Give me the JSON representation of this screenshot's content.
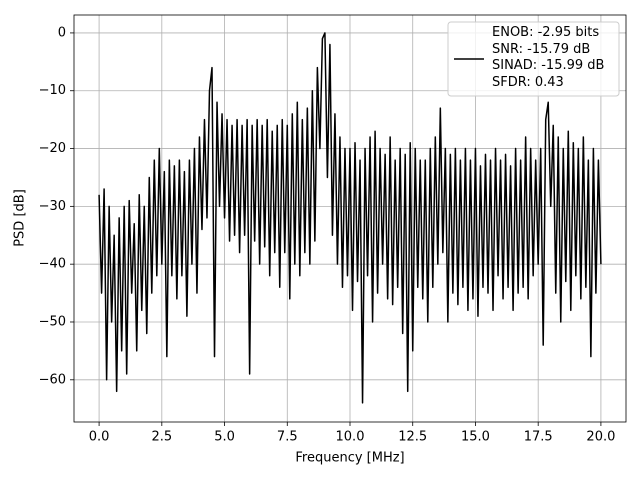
{
  "chart_data": {
    "type": "line",
    "xlabel": "Frequency [MHz]",
    "ylabel": "PSD [dB]",
    "xlim": [
      -1,
      21
    ],
    "ylim": [
      -67.3,
      3.1
    ],
    "xticks": [
      {
        "value": 0,
        "label": "0.0"
      },
      {
        "value": 2.5,
        "label": "2.5"
      },
      {
        "value": 5,
        "label": "5.0"
      },
      {
        "value": 7.5,
        "label": "7.5"
      },
      {
        "value": 10,
        "label": "10.0"
      },
      {
        "value": 12.5,
        "label": "12.5"
      },
      {
        "value": 15,
        "label": "15.0"
      },
      {
        "value": 17.5,
        "label": "17.5"
      },
      {
        "value": 20,
        "label": "20.0"
      }
    ],
    "yticks": [
      {
        "value": -60,
        "label": "−60"
      },
      {
        "value": -50,
        "label": "−50"
      },
      {
        "value": -40,
        "label": "−40"
      },
      {
        "value": -30,
        "label": "−30"
      },
      {
        "value": -20,
        "label": "−20"
      },
      {
        "value": -10,
        "label": "−10"
      },
      0
    ],
    "grid": true,
    "legend": "upper right",
    "x": [
      0,
      0.1,
      0.2,
      0.3,
      0.4,
      0.5,
      0.6,
      0.7,
      0.8,
      0.9,
      1,
      1.1,
      1.2,
      1.3,
      1.4,
      1.5,
      1.6,
      1.7,
      1.8,
      1.9,
      2,
      2.1,
      2.2,
      2.3,
      2.4,
      2.5,
      2.6,
      2.7,
      2.8,
      2.9,
      3,
      3.1,
      3.2,
      3.3,
      3.4,
      3.5,
      3.6,
      3.7,
      3.8,
      3.9,
      4,
      4.1,
      4.2,
      4.3,
      4.4,
      4.5,
      4.6,
      4.7,
      4.8,
      4.9,
      5,
      5.1,
      5.2,
      5.3,
      5.4,
      5.5,
      5.6,
      5.7,
      5.8,
      5.9,
      6,
      6.1,
      6.2,
      6.3,
      6.4,
      6.5,
      6.6,
      6.7,
      6.8,
      6.9,
      7,
      7.1,
      7.2,
      7.3,
      7.4,
      7.5,
      7.6,
      7.7,
      7.8,
      7.9,
      8,
      8.1,
      8.2,
      8.3,
      8.4,
      8.5,
      8.6,
      8.7,
      8.8,
      8.9,
      9,
      9.1,
      9.2,
      9.3,
      9.4,
      9.5,
      9.6,
      9.7,
      9.8,
      9.9,
      10,
      10.1,
      10.2,
      10.3,
      10.4,
      10.5,
      10.6,
      10.7,
      10.8,
      10.9,
      11,
      11.1,
      11.2,
      11.3,
      11.4,
      11.5,
      11.6,
      11.7,
      11.8,
      11.9,
      12,
      12.1,
      12.2,
      12.3,
      12.4,
      12.5,
      12.6,
      12.7,
      12.8,
      12.9,
      13,
      13.1,
      13.2,
      13.3,
      13.4,
      13.5,
      13.6,
      13.7,
      13.8,
      13.9,
      14,
      14.1,
      14.2,
      14.3,
      14.4,
      14.5,
      14.6,
      14.7,
      14.8,
      14.9,
      15,
      15.1,
      15.2,
      15.3,
      15.4,
      15.5,
      15.6,
      15.7,
      15.8,
      15.9,
      16,
      16.1,
      16.2,
      16.3,
      16.4,
      16.5,
      16.6,
      16.7,
      16.8,
      16.9,
      17,
      17.1,
      17.2,
      17.3,
      17.4,
      17.5,
      17.6,
      17.7,
      17.8,
      17.9,
      18,
      18.1,
      18.2,
      18.3,
      18.4,
      18.5,
      18.6,
      18.7,
      18.8,
      18.9,
      19,
      19.1,
      19.2,
      19.3,
      19.4,
      19.5,
      19.6,
      19.7,
      19.8,
      19.9,
      20
    ],
    "series": [
      {
        "name": "ENOB: -2.95 bits\nSNR: -15.79 dB\nSINAD: -15.99 dB\nSFDR: 0.43",
        "color": "#000000",
        "values": [
          -28,
          -45,
          -27,
          -60,
          -30,
          -50,
          -35,
          -62,
          -32,
          -55,
          -30,
          -59,
          -29,
          -45,
          -33,
          -55,
          -28,
          -48,
          -30,
          -52,
          -25,
          -45,
          -22,
          -42,
          -20,
          -40,
          -24,
          -56,
          -22,
          -42,
          -23,
          -46,
          -22,
          -42,
          -24,
          -49,
          -22,
          -40,
          -20,
          -45,
          -18,
          -34,
          -15,
          -32,
          -10,
          -6,
          -56,
          -12,
          -30,
          -14,
          -32,
          -15,
          -36,
          -16,
          -35,
          -15,
          -38,
          -16,
          -35,
          -15,
          -59,
          -16,
          -36,
          -15,
          -40,
          -16,
          -37,
          -15,
          -42,
          -17,
          -38,
          -16,
          -44,
          -15,
          -38,
          -16,
          -46,
          -14,
          -40,
          -12,
          -42,
          -15,
          -38,
          -13,
          -40,
          -10,
          -36,
          -6,
          -20,
          -1,
          0,
          -25,
          -2,
          -35,
          -14,
          -40,
          -18,
          -44,
          -20,
          -42,
          -20,
          -48,
          -19,
          -43,
          -22,
          -64,
          -20,
          -42,
          -18,
          -50,
          -17,
          -45,
          -20,
          -40,
          -21,
          -46,
          -18,
          -47,
          -22,
          -44,
          -20,
          -52,
          -21,
          -62,
          -19,
          -55,
          -20,
          -44,
          -22,
          -46,
          -22,
          -50,
          -20,
          -44,
          -18,
          -40,
          -13,
          -38,
          -20,
          -50,
          -21,
          -45,
          -20,
          -47,
          -22,
          -44,
          -20,
          -48,
          -22,
          -46,
          -20,
          -49,
          -23,
          -44,
          -21,
          -45,
          -22,
          -48,
          -20,
          -42,
          -22,
          -46,
          -21,
          -44,
          -23,
          -48,
          -20,
          -45,
          -22,
          -44,
          -18,
          -46,
          -20,
          -42,
          -22,
          -40,
          -20,
          -54,
          -15,
          -12,
          -30,
          -16,
          -45,
          -18,
          -50,
          -20,
          -43,
          -17,
          -48,
          -19,
          -42,
          -20,
          -46,
          -18,
          -44,
          -22,
          -56,
          -20,
          -45,
          -22,
          -40
        ]
      }
    ]
  }
}
